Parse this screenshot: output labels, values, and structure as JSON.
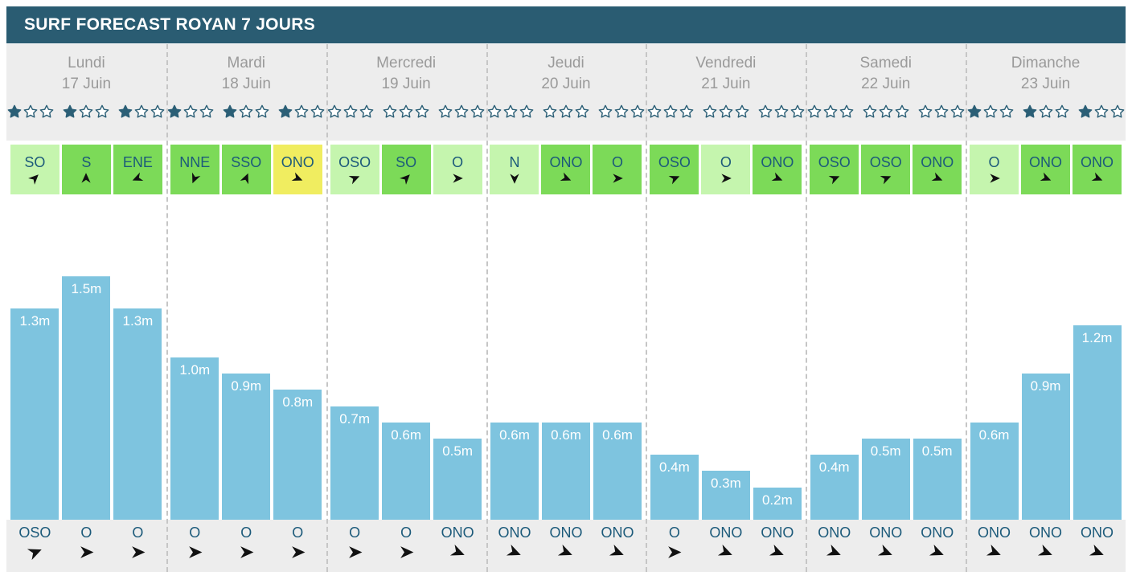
{
  "title": "SURF FORECAST ROYAN 7 JOURS",
  "colors": {
    "header_bg": "#2a5c72",
    "strip_bg": "#ededed",
    "day_text": "#9a9a9a",
    "teal_text": "#1c5a7a",
    "star_teal": "#2b5f76",
    "bar_blue": "#7ec4df",
    "wind_light": "#c5f5ae",
    "wind_medium": "#7cda58",
    "wind_yellow": "#f0ed60",
    "arrow_black": "#111111",
    "separator": "#c6c6c6"
  },
  "stars_per_slot_max": 3,
  "days": [
    {
      "name": "Lundi",
      "date": "17 Juin",
      "slots": [
        {
          "stars": 1,
          "wind_dir": "SO",
          "wind_shade": "light",
          "wave_m": 1.3,
          "wave_label": "1.3m",
          "swell_dir": "OSO"
        },
        {
          "stars": 1,
          "wind_dir": "S",
          "wind_shade": "medium",
          "wave_m": 1.5,
          "wave_label": "1.5m",
          "swell_dir": "O"
        },
        {
          "stars": 1,
          "wind_dir": "ENE",
          "wind_shade": "medium",
          "wave_m": 1.3,
          "wave_label": "1.3m",
          "swell_dir": "O"
        }
      ]
    },
    {
      "name": "Mardi",
      "date": "18 Juin",
      "slots": [
        {
          "stars": 1,
          "wind_dir": "NNE",
          "wind_shade": "medium",
          "wave_m": 1.0,
          "wave_label": "1.0m",
          "swell_dir": "O"
        },
        {
          "stars": 1,
          "wind_dir": "SSO",
          "wind_shade": "medium",
          "wave_m": 0.9,
          "wave_label": "0.9m",
          "swell_dir": "O"
        },
        {
          "stars": 1,
          "wind_dir": "ONO",
          "wind_shade": "yellow",
          "wave_m": 0.8,
          "wave_label": "0.8m",
          "swell_dir": "O"
        }
      ]
    },
    {
      "name": "Mercredi",
      "date": "19 Juin",
      "slots": [
        {
          "stars": 0,
          "wind_dir": "OSO",
          "wind_shade": "light",
          "wave_m": 0.7,
          "wave_label": "0.7m",
          "swell_dir": "O"
        },
        {
          "stars": 0,
          "wind_dir": "SO",
          "wind_shade": "medium",
          "wave_m": 0.6,
          "wave_label": "0.6m",
          "swell_dir": "O"
        },
        {
          "stars": 0,
          "wind_dir": "O",
          "wind_shade": "light",
          "wave_m": 0.5,
          "wave_label": "0.5m",
          "swell_dir": "ONO"
        }
      ]
    },
    {
      "name": "Jeudi",
      "date": "20 Juin",
      "slots": [
        {
          "stars": 0,
          "wind_dir": "N",
          "wind_shade": "light",
          "wave_m": 0.6,
          "wave_label": "0.6m",
          "swell_dir": "ONO"
        },
        {
          "stars": 0,
          "wind_dir": "ONO",
          "wind_shade": "medium",
          "wave_m": 0.6,
          "wave_label": "0.6m",
          "swell_dir": "ONO"
        },
        {
          "stars": 0,
          "wind_dir": "O",
          "wind_shade": "medium",
          "wave_m": 0.6,
          "wave_label": "0.6m",
          "swell_dir": "ONO"
        }
      ]
    },
    {
      "name": "Vendredi",
      "date": "21 Juin",
      "slots": [
        {
          "stars": 0,
          "wind_dir": "OSO",
          "wind_shade": "medium",
          "wave_m": 0.4,
          "wave_label": "0.4m",
          "swell_dir": "O"
        },
        {
          "stars": 0,
          "wind_dir": "O",
          "wind_shade": "light",
          "wave_m": 0.3,
          "wave_label": "0.3m",
          "swell_dir": "ONO"
        },
        {
          "stars": 0,
          "wind_dir": "ONO",
          "wind_shade": "medium",
          "wave_m": 0.2,
          "wave_label": "0.2m",
          "swell_dir": "ONO"
        }
      ]
    },
    {
      "name": "Samedi",
      "date": "22 Juin",
      "slots": [
        {
          "stars": 0,
          "wind_dir": "OSO",
          "wind_shade": "medium",
          "wave_m": 0.4,
          "wave_label": "0.4m",
          "swell_dir": "ONO"
        },
        {
          "stars": 0,
          "wind_dir": "OSO",
          "wind_shade": "medium",
          "wave_m": 0.5,
          "wave_label": "0.5m",
          "swell_dir": "ONO"
        },
        {
          "stars": 0,
          "wind_dir": "ONO",
          "wind_shade": "medium",
          "wave_m": 0.5,
          "wave_label": "0.5m",
          "swell_dir": "ONO"
        }
      ]
    },
    {
      "name": "Dimanche",
      "date": "23 Juin",
      "slots": [
        {
          "stars": 1,
          "wind_dir": "O",
          "wind_shade": "light",
          "wave_m": 0.6,
          "wave_label": "0.6m",
          "swell_dir": "ONO"
        },
        {
          "stars": 1,
          "wind_dir": "ONO",
          "wind_shade": "medium",
          "wave_m": 0.9,
          "wave_label": "0.9m",
          "swell_dir": "ONO"
        },
        {
          "stars": 1,
          "wind_dir": "ONO",
          "wind_shade": "medium",
          "wave_m": 1.2,
          "wave_label": "1.2m",
          "swell_dir": "ONO"
        }
      ]
    }
  ],
  "chart_data": {
    "type": "bar",
    "title": "SURF FORECAST ROYAN 7 JOURS",
    "categories": [
      "Lundi 17 Juin",
      "Mardi 18 Juin",
      "Mercredi 19 Juin",
      "Jeudi 20 Juin",
      "Vendredi 21 Juin",
      "Samedi 22 Juin",
      "Dimanche 23 Juin"
    ],
    "values_by_day": [
      [
        1.3,
        1.5,
        1.3
      ],
      [
        1.0,
        0.9,
        0.8
      ],
      [
        0.7,
        0.6,
        0.5
      ],
      [
        0.6,
        0.6,
        0.6
      ],
      [
        0.4,
        0.3,
        0.2
      ],
      [
        0.4,
        0.5,
        0.5
      ],
      [
        0.6,
        0.9,
        1.2
      ]
    ],
    "bar_labels_by_day": [
      [
        "1.3m",
        "1.5m",
        "1.3m"
      ],
      [
        "1.0m",
        "0.9m",
        "0.8m"
      ],
      [
        "0.7m",
        "0.6m",
        "0.5m"
      ],
      [
        "0.6m",
        "0.6m",
        "0.6m"
      ],
      [
        "0.4m",
        "0.3m",
        "0.2m"
      ],
      [
        "0.4m",
        "0.5m",
        "0.5m"
      ],
      [
        "0.6m",
        "0.9m",
        "1.2m"
      ]
    ],
    "unit": "m",
    "ylim": [
      0,
      1.5
    ],
    "star_ratings_by_day": [
      [
        1,
        1,
        1
      ],
      [
        1,
        1,
        1
      ],
      [
        0,
        0,
        0
      ],
      [
        0,
        0,
        0
      ],
      [
        0,
        0,
        0
      ],
      [
        0,
        0,
        0
      ],
      [
        1,
        1,
        1
      ]
    ],
    "wind_dirs_by_day": [
      [
        "SO",
        "S",
        "ENE"
      ],
      [
        "NNE",
        "SSO",
        "ONO"
      ],
      [
        "OSO",
        "SO",
        "O"
      ],
      [
        "N",
        "ONO",
        "O"
      ],
      [
        "OSO",
        "O",
        "ONO"
      ],
      [
        "OSO",
        "OSO",
        "ONO"
      ],
      [
        "O",
        "ONO",
        "ONO"
      ]
    ],
    "swell_dirs_by_day": [
      [
        "OSO",
        "O",
        "O"
      ],
      [
        "O",
        "O",
        "O"
      ],
      [
        "O",
        "O",
        "ONO"
      ],
      [
        "ONO",
        "ONO",
        "ONO"
      ],
      [
        "O",
        "ONO",
        "ONO"
      ],
      [
        "ONO",
        "ONO",
        "ONO"
      ],
      [
        "ONO",
        "ONO",
        "ONO"
      ]
    ],
    "grid": false,
    "legend": false
  }
}
